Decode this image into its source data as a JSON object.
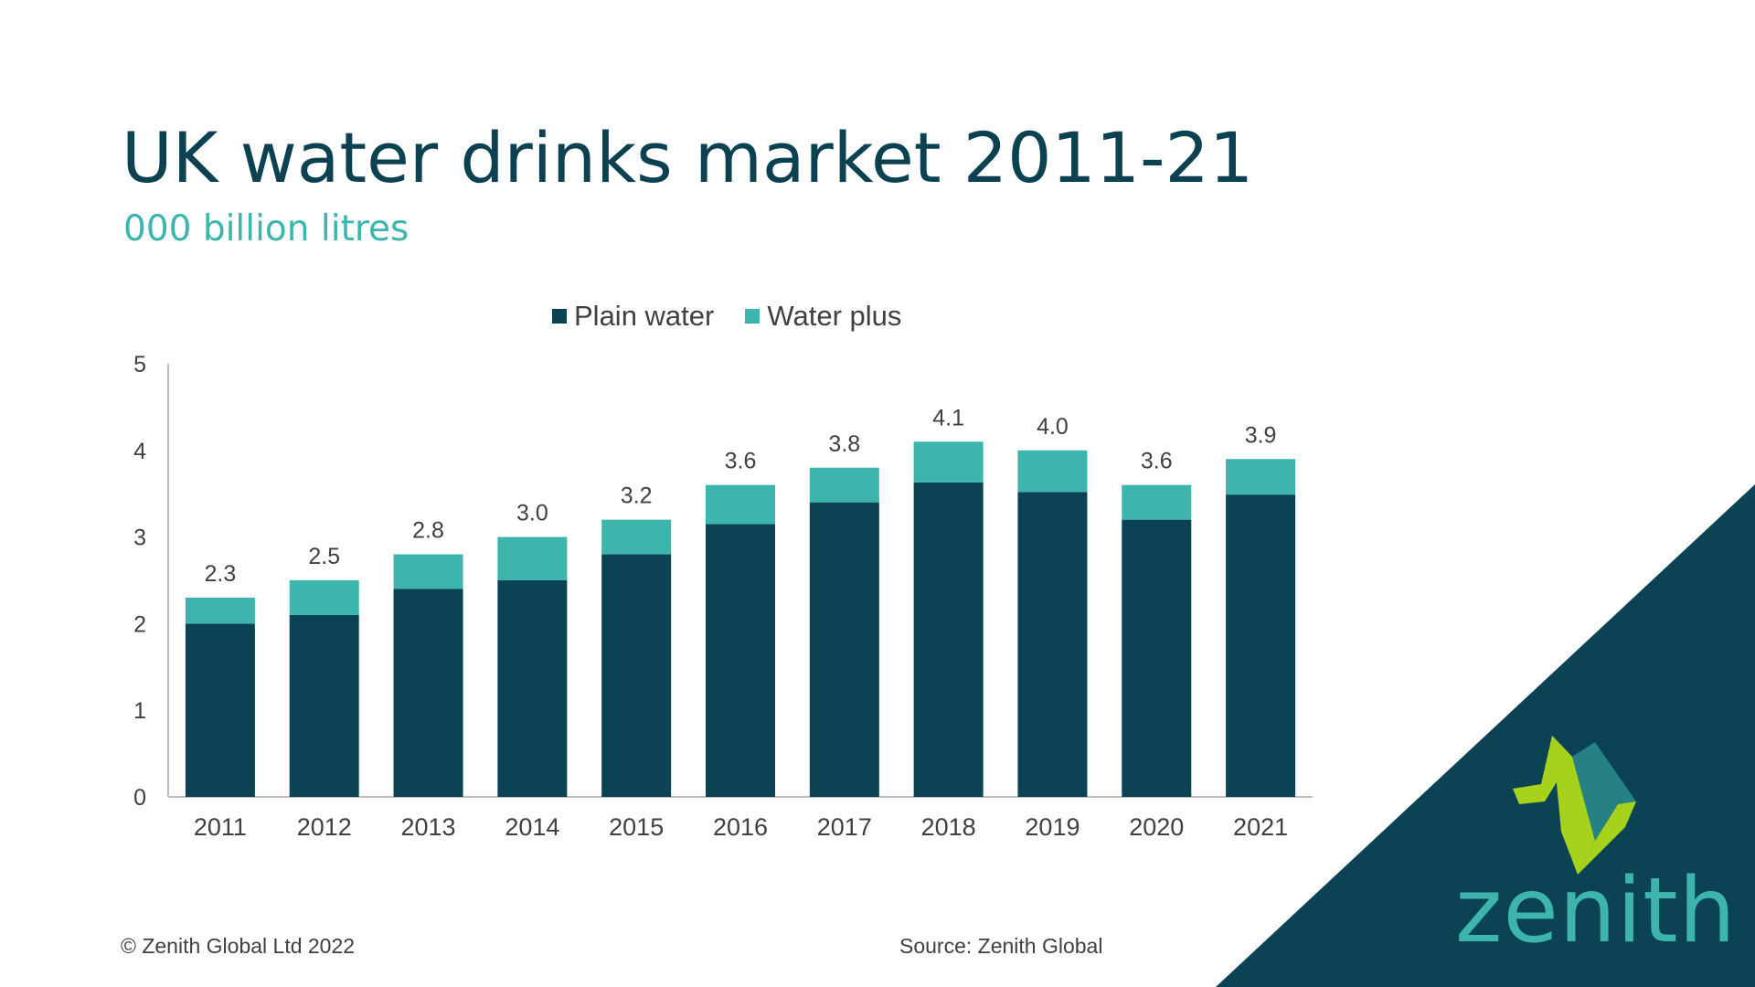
{
  "slide": {
    "title": "UK water drinks market 2011-21",
    "subtitle": "000 billion litres",
    "copyright": "© Zenith Global Ltd 2022",
    "source": "Source: Zenith Global",
    "logo_text": "zenith"
  },
  "colors": {
    "plain": "#0c4354",
    "plus": "#3db5ad",
    "corner": "#0c4354",
    "logo_green": "#a6d21c",
    "logo_teal": "#3db5ad"
  },
  "chart_data": {
    "type": "bar",
    "stacked": true,
    "categories": [
      "2011",
      "2012",
      "2013",
      "2014",
      "2015",
      "2016",
      "2017",
      "2018",
      "2019",
      "2020",
      "2021"
    ],
    "series": [
      {
        "name": "Plain water",
        "values": [
          2.0,
          2.1,
          2.4,
          2.5,
          2.8,
          3.15,
          3.4,
          3.63,
          3.52,
          3.2,
          3.49
        ]
      },
      {
        "name": "Water plus",
        "values": [
          0.3,
          0.4,
          0.4,
          0.5,
          0.4,
          0.45,
          0.4,
          0.47,
          0.48,
          0.4,
          0.41
        ]
      }
    ],
    "totals": [
      2.3,
      2.5,
      2.8,
      3.0,
      3.2,
      3.6,
      3.8,
      4.1,
      4.0,
      3.6,
      3.9
    ],
    "total_labels": [
      "2.3",
      "2.5",
      "2.8",
      "3.0",
      "3.2",
      "3.6",
      "3.8",
      "4.1",
      "4.0",
      "3.6",
      "3.9"
    ],
    "ylim": [
      0,
      5
    ],
    "yticks": [
      "0",
      "1",
      "2",
      "3",
      "4",
      "5"
    ],
    "legend_position": "top",
    "grid": false
  }
}
